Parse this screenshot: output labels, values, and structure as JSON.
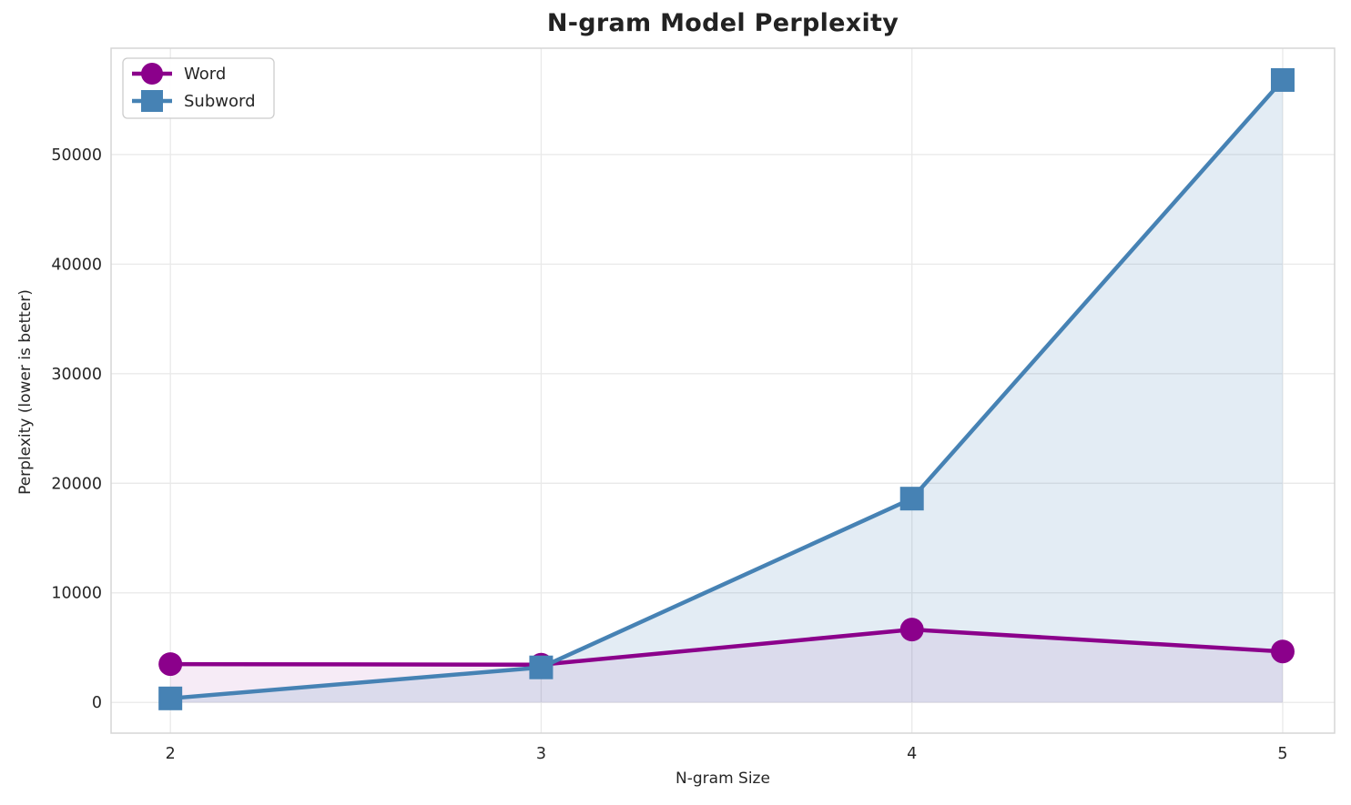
{
  "chart_data": {
    "type": "line",
    "title": "N-gram Model Perplexity",
    "xlabel": "N-gram Size",
    "ylabel": "Perplexity (lower is better)",
    "x": [
      2,
      3,
      4,
      5
    ],
    "xtick_labels": [
      "2",
      "3",
      "4",
      "5"
    ],
    "yticks": [
      0,
      10000,
      20000,
      30000,
      40000,
      50000
    ],
    "ytick_labels": [
      "0",
      "10000",
      "20000",
      "30000",
      "40000",
      "50000"
    ],
    "xlim": [
      1.84,
      5.14
    ],
    "ylim": [
      -2800,
      59700
    ],
    "grid": true,
    "legend_position": "upper left",
    "fill_to_zero": true,
    "series": [
      {
        "name": "Word",
        "marker": "circle",
        "color": "#8B008B",
        "fill_alpha": 0.08,
        "values": [
          3500,
          3450,
          6650,
          4650
        ]
      },
      {
        "name": "Subword",
        "marker": "square",
        "color": "#4682B4",
        "fill_alpha": 0.15,
        "values": [
          370,
          3200,
          18600,
          56800
        ]
      }
    ],
    "colors": {
      "grid": "#E9E9E9",
      "spine": "#D5D5D5",
      "tick_text": "#262626",
      "legend_border": "#CCCCCC",
      "legend_bg": "#FFFFFF"
    }
  }
}
